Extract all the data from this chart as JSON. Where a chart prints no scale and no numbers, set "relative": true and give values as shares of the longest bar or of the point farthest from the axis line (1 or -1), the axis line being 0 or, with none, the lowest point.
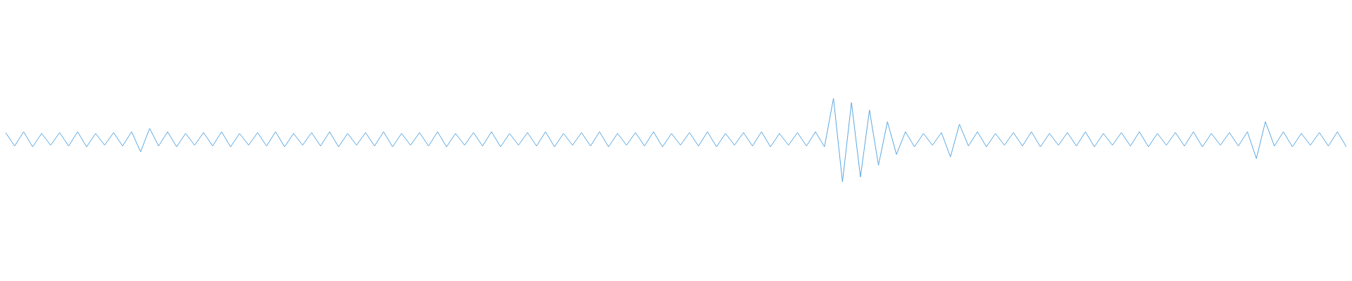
{
  "chart_data": {
    "type": "line",
    "relative": true,
    "categories": [
      null,
      null,
      null,
      null,
      null,
      null,
      null,
      null,
      null,
      null,
      null,
      null,
      null,
      null,
      null,
      null,
      null,
      null,
      null,
      null,
      null,
      null,
      null,
      null,
      null,
      null,
      null,
      null,
      null,
      null,
      null,
      null,
      null,
      null,
      null,
      null,
      null,
      null,
      null,
      null,
      null,
      null,
      null,
      null,
      null,
      null,
      null,
      null,
      null,
      null,
      null,
      null,
      null,
      null,
      null,
      null,
      null,
      null,
      null,
      null,
      null,
      null,
      null,
      null,
      null,
      null,
      null,
      null,
      null,
      null,
      null,
      null,
      null,
      null,
      null,
      null,
      null,
      null,
      null,
      null,
      null,
      null,
      null,
      null,
      null,
      null,
      null,
      null,
      null,
      null,
      null,
      null,
      null,
      null,
      null,
      null,
      null,
      null,
      null,
      null,
      null,
      null,
      null,
      null,
      null,
      null,
      null,
      null,
      null,
      null,
      null,
      null,
      null,
      null,
      null,
      null,
      null,
      null,
      null,
      null,
      null,
      null,
      null,
      null,
      null,
      null,
      null,
      null,
      null,
      null,
      null,
      null,
      null,
      null,
      null,
      null,
      null,
      null,
      null,
      null,
      null,
      null,
      null,
      null,
      null,
      null,
      null,
      null,
      null,
      null
    ],
    "series": [
      {
        "color": "#5ba7e0",
        "values": [
          0.59,
          0.43,
          0.6,
          0.42,
          0.58,
          0.44,
          0.59,
          0.43,
          0.6,
          0.42,
          0.58,
          0.44,
          0.59,
          0.43,
          0.6,
          0.36,
          0.64,
          0.43,
          0.6,
          0.42,
          0.58,
          0.44,
          0.59,
          0.43,
          0.6,
          0.42,
          0.58,
          0.44,
          0.59,
          0.43,
          0.6,
          0.42,
          0.58,
          0.44,
          0.59,
          0.43,
          0.6,
          0.42,
          0.58,
          0.44,
          0.59,
          0.43,
          0.6,
          0.42,
          0.58,
          0.44,
          0.59,
          0.43,
          0.6,
          0.42,
          0.58,
          0.44,
          0.59,
          0.43,
          0.6,
          0.42,
          0.58,
          0.44,
          0.59,
          0.43,
          0.6,
          0.42,
          0.58,
          0.44,
          0.59,
          0.43,
          0.6,
          0.42,
          0.58,
          0.44,
          0.59,
          0.43,
          0.6,
          0.42,
          0.58,
          0.44,
          0.59,
          0.43,
          0.6,
          0.42,
          0.58,
          0.44,
          0.59,
          0.43,
          0.6,
          0.42,
          0.58,
          0.44,
          0.59,
          0.43,
          0.6,
          0.42,
          1.0,
          0,
          0.95,
          0.06,
          0.86,
          0.2,
          0.72,
          0.33,
          0.6,
          0.42,
          0.58,
          0.44,
          0.59,
          0.3,
          0.69,
          0.43,
          0.6,
          0.42,
          0.58,
          0.44,
          0.59,
          0.43,
          0.6,
          0.42,
          0.58,
          0.44,
          0.59,
          0.43,
          0.6,
          0.42,
          0.58,
          0.44,
          0.59,
          0.43,
          0.6,
          0.42,
          0.58,
          0.44,
          0.59,
          0.43,
          0.6,
          0.42,
          0.58,
          0.44,
          0.59,
          0.43,
          0.6,
          0.28,
          0.72,
          0.43,
          0.6,
          0.42,
          0.58,
          0.44,
          0.59,
          0.43,
          0.6,
          0.42
        ]
      }
    ]
  }
}
